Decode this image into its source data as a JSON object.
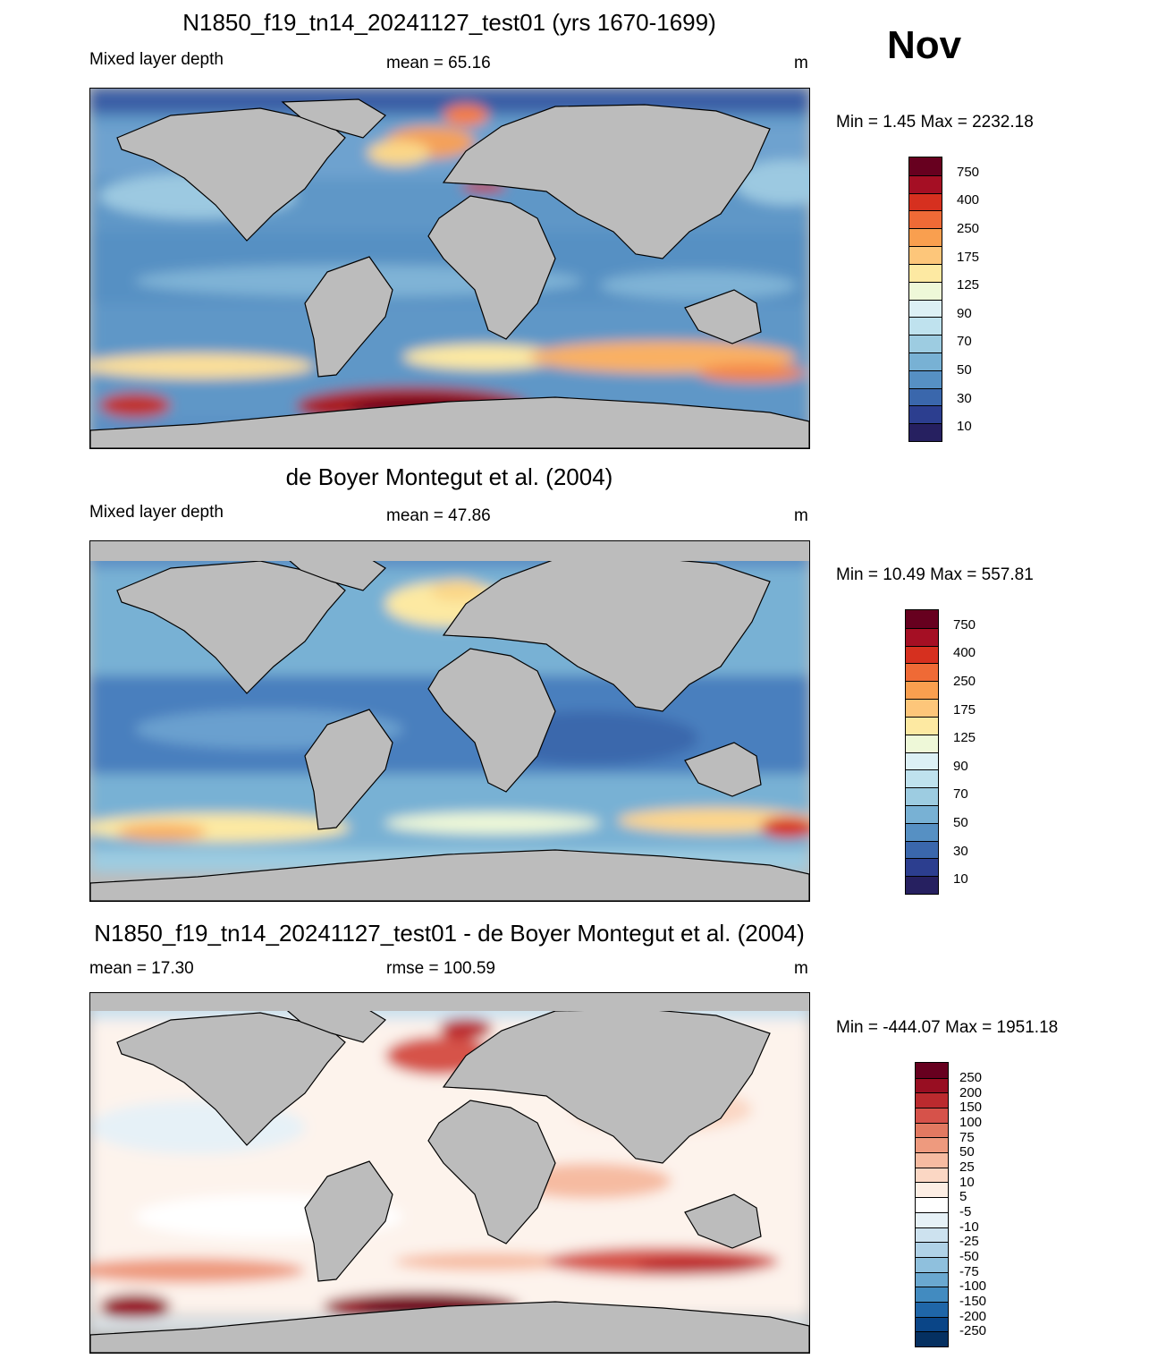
{
  "month": "Nov",
  "panels": [
    {
      "title": "N1850_f19_tn14_20241127_test01 (yrs 1670-1699)",
      "left": "Mixed layer depth",
      "center": "mean =  65.16",
      "right": "m",
      "minmax": "Min =   1.45 Max = 2232.18"
    },
    {
      "title": "de Boyer Montegut et al. (2004)",
      "left": "Mixed layer depth",
      "center": "mean =  47.86",
      "right": "m",
      "minmax": "Min =  10.49 Max = 557.81"
    },
    {
      "title": "N1850_f19_tn14_20241127_test01 - de Boyer Montegut et al. (2004)",
      "left": "mean =  17.30",
      "center": "rmse = 100.59",
      "right": "m",
      "minmax": "Min = -444.07 Max = 1951.18"
    }
  ],
  "colorbar_mld": {
    "labels": [
      "750",
      "400",
      "250",
      "175",
      "125",
      "90",
      "70",
      "50",
      "30",
      "10"
    ],
    "colors": [
      "#67001f",
      "#a50f24",
      "#d6301f",
      "#ef6a36",
      "#f99f4f",
      "#fdc67a",
      "#fde9a2",
      "#eef8d8",
      "#dcf0f5",
      "#bfe2ee",
      "#9dcce1",
      "#78b1d4",
      "#5690c3",
      "#3a67ac",
      "#2c3e8f",
      "#262060"
    ]
  },
  "colorbar_diff": {
    "labels": [
      "250",
      "200",
      "150",
      "100",
      "75",
      "50",
      "25",
      "10",
      "5",
      "-5",
      "-10",
      "-25",
      "-50",
      "-75",
      "-100",
      "-150",
      "-200",
      "-250"
    ],
    "colors": [
      "#67001f",
      "#980e22",
      "#bb2a2e",
      "#d6524a",
      "#e27961",
      "#ee9a7e",
      "#f6bba1",
      "#fbd7c4",
      "#fdeee4",
      "#ffffff",
      "#e6f1f7",
      "#cde2ef",
      "#b0d2e7",
      "#8fc0dd",
      "#6aa8d0",
      "#428bc0",
      "#1f66a8",
      "#0a4587",
      "#053061"
    ]
  }
}
